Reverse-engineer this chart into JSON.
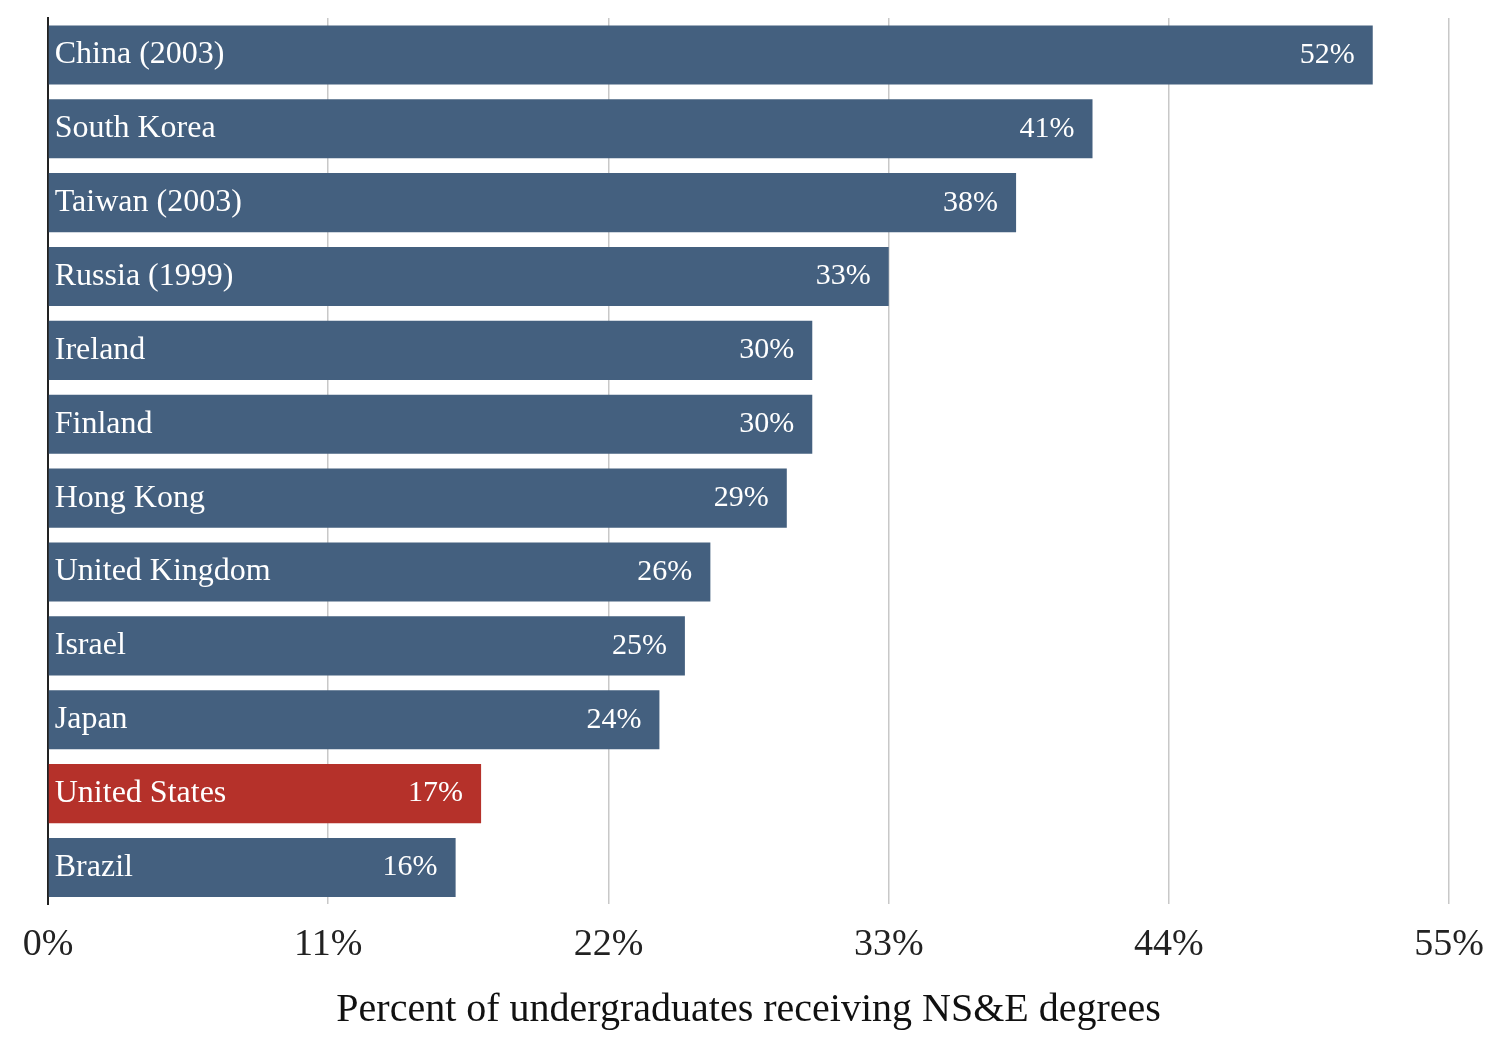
{
  "chart_data": {
    "type": "bar",
    "orientation": "horizontal",
    "xlabel": "Percent of undergraduates receiving NS&E degrees",
    "categories": [
      "China (2003)",
      "South Korea",
      "Taiwan (2003)",
      "Russia (1999)",
      "Ireland",
      "Finland",
      "Hong Kong",
      "United Kingdom",
      "Israel",
      "Japan",
      "United States",
      "Brazil"
    ],
    "values": [
      52,
      41,
      38,
      33,
      30,
      30,
      29,
      26,
      25,
      24,
      17,
      16
    ],
    "value_labels": [
      "52%",
      "41%",
      "38%",
      "33%",
      "30%",
      "30%",
      "29%",
      "26%",
      "25%",
      "24%",
      "17%",
      "16%"
    ],
    "colors": [
      "#44607f",
      "#44607f",
      "#44607f",
      "#44607f",
      "#44607f",
      "#44607f",
      "#44607f",
      "#44607f",
      "#44607f",
      "#44607f",
      "#b5312a",
      "#44607f"
    ],
    "xlim": [
      0,
      55
    ],
    "xticks": [
      {
        "value": 0,
        "label": "0%"
      },
      {
        "value": 11,
        "label": "11%"
      },
      {
        "value": 22,
        "label": "22%"
      },
      {
        "value": 33,
        "label": "33%"
      },
      {
        "value": 44,
        "label": "44%"
      },
      {
        "value": 55,
        "label": "55%"
      }
    ],
    "grid": "x"
  }
}
